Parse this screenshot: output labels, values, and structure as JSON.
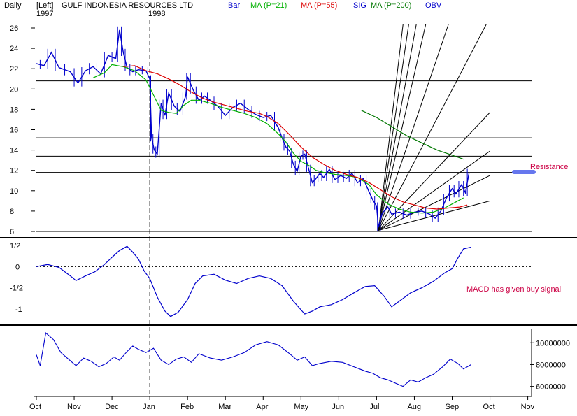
{
  "header": {
    "period": "Daily",
    "scale_side": "[Left]",
    "title": "GULF INDONESIA RESOURCES LTD",
    "year_start": "1997",
    "year_divider": "1998",
    "legend": [
      {
        "text": "Bar",
        "color": "#0000cc"
      },
      {
        "text": "MA (P=21)",
        "color": "#00b000"
      },
      {
        "text": "MA (P=55)",
        "color": "#dd0000"
      },
      {
        "text": "SIG",
        "color": "#0000cc"
      },
      {
        "text": "MA (P=200)",
        "color": "#007700"
      },
      {
        "text": "OBV",
        "color": "#0000cc"
      }
    ]
  },
  "annotations": {
    "resistance": "Resistance",
    "macd_note": "MACD has given buy signal",
    "annotation_color": "#cc0044"
  },
  "colors": {
    "price": "#0000cc",
    "ma21": "#00b000",
    "ma55": "#dd0000",
    "ma200": "#007700",
    "macd": "#0000cc",
    "obv": "#0000cc",
    "frame": "#000000"
  },
  "chart_data": [
    {
      "type": "line",
      "name": "price",
      "x_axis_labels": [
        "Oct",
        "Nov",
        "Dec",
        "Jan",
        "Feb",
        "Mar",
        "Apr",
        "May",
        "Jun",
        "Jul",
        "Aug",
        "Sep",
        "Oct",
        "Nov"
      ],
      "y_ticks": [
        26,
        24,
        22,
        20,
        18,
        16,
        14,
        12,
        10,
        8,
        6
      ],
      "ylim": [
        6,
        26
      ],
      "horizontal_lines": [
        20.8,
        15.2,
        13.4,
        11.8,
        6.0
      ],
      "price_path": [
        [
          0,
          22.5
        ],
        [
          0.2,
          22.3
        ],
        [
          0.4,
          23.6
        ],
        [
          0.6,
          22.1
        ],
        [
          0.9,
          21.7
        ],
        [
          1.1,
          20.6
        ],
        [
          1.3,
          21.8
        ],
        [
          1.5,
          22.2
        ],
        [
          1.7,
          21.5
        ],
        [
          1.9,
          23.3
        ],
        [
          2.1,
          23.0
        ],
        [
          2.2,
          25.8
        ],
        [
          2.3,
          23.6
        ],
        [
          2.4,
          22.1
        ],
        [
          2.55,
          21.7
        ],
        [
          2.7,
          21.9
        ],
        [
          2.9,
          21.8
        ],
        [
          3.0,
          21.0
        ],
        [
          3.05,
          15.2
        ],
        [
          3.12,
          14.0
        ],
        [
          3.2,
          13.6
        ],
        [
          3.3,
          18.6
        ],
        [
          3.4,
          17.4
        ],
        [
          3.5,
          19.6
        ],
        [
          3.65,
          18.3
        ],
        [
          3.8,
          17.8
        ],
        [
          3.95,
          19.3
        ],
        [
          4.0,
          21.2
        ],
        [
          4.15,
          19.9
        ],
        [
          4.3,
          18.9
        ],
        [
          4.45,
          19.3
        ],
        [
          4.6,
          18.9
        ],
        [
          4.8,
          18.3
        ],
        [
          5.0,
          17.4
        ],
        [
          5.2,
          18.2
        ],
        [
          5.4,
          18.6
        ],
        [
          5.6,
          18.0
        ],
        [
          5.8,
          17.5
        ],
        [
          6.0,
          17.2
        ],
        [
          6.2,
          17.4
        ],
        [
          6.4,
          16.2
        ],
        [
          6.5,
          15.2
        ],
        [
          6.6,
          14.3
        ],
        [
          6.7,
          13.9
        ],
        [
          6.8,
          12.6
        ],
        [
          6.9,
          11.9
        ],
        [
          7.0,
          13.4
        ],
        [
          7.1,
          13.6
        ],
        [
          7.2,
          12.2
        ],
        [
          7.3,
          10.8
        ],
        [
          7.4,
          11.2
        ],
        [
          7.5,
          11.7
        ],
        [
          7.6,
          11.3
        ],
        [
          7.75,
          12.1
        ],
        [
          7.9,
          11.1
        ],
        [
          8.05,
          11.5
        ],
        [
          8.2,
          11.2
        ],
        [
          8.35,
          11.7
        ],
        [
          8.5,
          10.8
        ],
        [
          8.65,
          11.2
        ],
        [
          8.8,
          9.9
        ],
        [
          8.9,
          9.1
        ],
        [
          9.0,
          8.5
        ],
        [
          9.05,
          6.4
        ],
        [
          9.15,
          7.8
        ],
        [
          9.3,
          8.4
        ],
        [
          9.4,
          7.7
        ],
        [
          9.6,
          7.9
        ],
        [
          9.8,
          7.6
        ],
        [
          10.0,
          7.9
        ],
        [
          10.2,
          8.0
        ],
        [
          10.4,
          7.7
        ],
        [
          10.55,
          7.3
        ],
        [
          10.7,
          8.0
        ],
        [
          10.85,
          9.3
        ],
        [
          11.0,
          10.2
        ],
        [
          11.1,
          9.7
        ],
        [
          11.25,
          10.6
        ],
        [
          11.35,
          9.8
        ],
        [
          11.45,
          11.8
        ]
      ],
      "ma21_path": [
        [
          1.5,
          21.1
        ],
        [
          1.8,
          21.6
        ],
        [
          2.0,
          22.4
        ],
        [
          2.3,
          22.2
        ],
        [
          2.6,
          21.8
        ],
        [
          2.9,
          20.9
        ],
        [
          3.1,
          19.4
        ],
        [
          3.3,
          17.9
        ],
        [
          3.5,
          17.7
        ],
        [
          3.7,
          17.6
        ],
        [
          3.9,
          18.4
        ],
        [
          4.1,
          18.9
        ],
        [
          4.3,
          18.9
        ],
        [
          4.6,
          18.6
        ],
        [
          4.9,
          18.2
        ],
        [
          5.2,
          17.9
        ],
        [
          5.5,
          17.6
        ],
        [
          5.8,
          17.2
        ],
        [
          6.1,
          16.6
        ],
        [
          6.4,
          15.6
        ],
        [
          6.6,
          14.8
        ],
        [
          6.8,
          13.7
        ],
        [
          7.0,
          12.9
        ],
        [
          7.2,
          12.5
        ],
        [
          7.4,
          12.0
        ],
        [
          7.6,
          11.8
        ],
        [
          7.9,
          11.6
        ],
        [
          8.2,
          11.5
        ],
        [
          8.5,
          11.3
        ],
        [
          8.8,
          10.6
        ],
        [
          9.0,
          9.6
        ],
        [
          9.3,
          8.7
        ],
        [
          9.6,
          8.2
        ],
        [
          9.9,
          7.9
        ],
        [
          10.2,
          7.8
        ],
        [
          10.5,
          7.9
        ],
        [
          10.8,
          8.3
        ],
        [
          11.1,
          8.9
        ],
        [
          11.3,
          9.3
        ]
      ],
      "ma55_path": [
        [
          2.3,
          22.2
        ],
        [
          2.6,
          22.3
        ],
        [
          2.9,
          21.8
        ],
        [
          3.2,
          21.5
        ],
        [
          3.5,
          21.0
        ],
        [
          3.8,
          20.4
        ],
        [
          4.1,
          19.7
        ],
        [
          4.4,
          19.1
        ],
        [
          4.7,
          18.7
        ],
        [
          5.0,
          18.4
        ],
        [
          5.3,
          18.1
        ],
        [
          5.6,
          17.8
        ],
        [
          5.9,
          17.6
        ],
        [
          6.1,
          17.3
        ],
        [
          6.4,
          16.6
        ],
        [
          6.7,
          15.5
        ],
        [
          7.0,
          14.3
        ],
        [
          7.3,
          13.3
        ],
        [
          7.6,
          12.6
        ],
        [
          7.9,
          12.0
        ],
        [
          8.2,
          11.6
        ],
        [
          8.5,
          11.3
        ],
        [
          8.8,
          10.8
        ],
        [
          9.1,
          10.1
        ],
        [
          9.4,
          9.4
        ],
        [
          9.7,
          8.9
        ],
        [
          10.0,
          8.6
        ],
        [
          10.3,
          8.3
        ],
        [
          10.6,
          8.2
        ],
        [
          10.9,
          8.3
        ],
        [
          11.2,
          8.4
        ],
        [
          11.4,
          8.6
        ]
      ],
      "ma200_path": [
        [
          8.6,
          17.9
        ],
        [
          9.0,
          17.2
        ],
        [
          9.4,
          16.3
        ],
        [
          9.8,
          15.4
        ],
        [
          10.2,
          14.7
        ],
        [
          10.6,
          14.0
        ],
        [
          11.0,
          13.5
        ],
        [
          11.3,
          13.1
        ]
      ],
      "fan_origin": [
        9.05,
        6.1
      ],
      "fan_targets": [
        [
          9.7,
          26.5
        ],
        [
          9.85,
          26.5
        ],
        [
          10.05,
          26.5
        ],
        [
          10.3,
          26.5
        ],
        [
          10.9,
          26.5
        ],
        [
          11.9,
          26.5
        ],
        [
          12.0,
          17.7
        ],
        [
          12.0,
          13.9
        ],
        [
          12.0,
          11.5
        ],
        [
          12.0,
          9.0
        ]
      ]
    },
    {
      "type": "line",
      "name": "macd",
      "y_ticks": [
        "1/2",
        "0",
        "-1/2",
        "-1"
      ],
      "y_tick_values": [
        0.5,
        0,
        -0.5,
        -1
      ],
      "ylim": [
        -1.3,
        0.6
      ],
      "zero_line": 0,
      "points": [
        [
          0,
          0.0
        ],
        [
          0.3,
          0.05
        ],
        [
          0.6,
          -0.02
        ],
        [
          0.9,
          -0.22
        ],
        [
          1.05,
          -0.33
        ],
        [
          1.3,
          -0.22
        ],
        [
          1.55,
          -0.12
        ],
        [
          1.8,
          0.05
        ],
        [
          2.0,
          0.22
        ],
        [
          2.2,
          0.38
        ],
        [
          2.4,
          0.48
        ],
        [
          2.55,
          0.34
        ],
        [
          2.7,
          0.18
        ],
        [
          2.85,
          -0.1
        ],
        [
          3.0,
          -0.28
        ],
        [
          3.2,
          -0.72
        ],
        [
          3.4,
          -1.05
        ],
        [
          3.55,
          -1.18
        ],
        [
          3.75,
          -1.08
        ],
        [
          4.0,
          -0.78
        ],
        [
          4.2,
          -0.4
        ],
        [
          4.4,
          -0.22
        ],
        [
          4.7,
          -0.18
        ],
        [
          5.0,
          -0.32
        ],
        [
          5.3,
          -0.4
        ],
        [
          5.6,
          -0.28
        ],
        [
          5.9,
          -0.22
        ],
        [
          6.2,
          -0.28
        ],
        [
          6.5,
          -0.45
        ],
        [
          6.8,
          -0.82
        ],
        [
          7.1,
          -1.12
        ],
        [
          7.3,
          -1.05
        ],
        [
          7.5,
          -0.95
        ],
        [
          7.8,
          -0.9
        ],
        [
          8.1,
          -0.78
        ],
        [
          8.4,
          -0.62
        ],
        [
          8.7,
          -0.47
        ],
        [
          8.95,
          -0.45
        ],
        [
          9.2,
          -0.7
        ],
        [
          9.4,
          -0.95
        ],
        [
          9.6,
          -0.82
        ],
        [
          9.9,
          -0.62
        ],
        [
          10.2,
          -0.5
        ],
        [
          10.5,
          -0.35
        ],
        [
          10.8,
          -0.15
        ],
        [
          11.0,
          -0.05
        ],
        [
          11.15,
          0.2
        ],
        [
          11.3,
          0.42
        ],
        [
          11.5,
          0.46
        ]
      ]
    },
    {
      "type": "line",
      "name": "obv",
      "y_ticks": [
        "10000000",
        "8000000",
        "6000000"
      ],
      "y_tick_values": [
        10000000,
        8000000,
        6000000
      ],
      "ylim": [
        5400000,
        11300000
      ],
      "points": [
        [
          0,
          8.9
        ],
        [
          0.1,
          7.9
        ],
        [
          0.25,
          10.9
        ],
        [
          0.45,
          10.3
        ],
        [
          0.65,
          9.1
        ],
        [
          0.85,
          8.5
        ],
        [
          1.05,
          7.9
        ],
        [
          1.25,
          8.6
        ],
        [
          1.45,
          8.3
        ],
        [
          1.65,
          7.8
        ],
        [
          1.85,
          8.1
        ],
        [
          2.05,
          8.7
        ],
        [
          2.2,
          8.4
        ],
        [
          2.4,
          9.2
        ],
        [
          2.55,
          9.7
        ],
        [
          2.7,
          9.4
        ],
        [
          2.9,
          9.1
        ],
        [
          3.1,
          9.5
        ],
        [
          3.3,
          8.4
        ],
        [
          3.5,
          8.0
        ],
        [
          3.7,
          8.5
        ],
        [
          3.9,
          8.7
        ],
        [
          4.1,
          8.2
        ],
        [
          4.3,
          9.0
        ],
        [
          4.6,
          8.6
        ],
        [
          4.9,
          8.4
        ],
        [
          5.2,
          8.7
        ],
        [
          5.5,
          9.1
        ],
        [
          5.8,
          9.8
        ],
        [
          6.1,
          10.1
        ],
        [
          6.4,
          9.8
        ],
        [
          6.7,
          9.0
        ],
        [
          6.9,
          8.4
        ],
        [
          7.1,
          8.7
        ],
        [
          7.3,
          7.9
        ],
        [
          7.5,
          8.1
        ],
        [
          7.8,
          8.3
        ],
        [
          8.1,
          8.2
        ],
        [
          8.4,
          7.8
        ],
        [
          8.7,
          7.4
        ],
        [
          8.9,
          7.2
        ],
        [
          9.1,
          6.8
        ],
        [
          9.3,
          6.6
        ],
        [
          9.5,
          6.3
        ],
        [
          9.7,
          6.0
        ],
        [
          9.9,
          6.6
        ],
        [
          10.1,
          6.4
        ],
        [
          10.3,
          6.8
        ],
        [
          10.5,
          7.1
        ],
        [
          10.75,
          7.8
        ],
        [
          10.95,
          8.5
        ],
        [
          11.15,
          8.1
        ],
        [
          11.3,
          7.6
        ],
        [
          11.5,
          8.0
        ]
      ]
    }
  ]
}
